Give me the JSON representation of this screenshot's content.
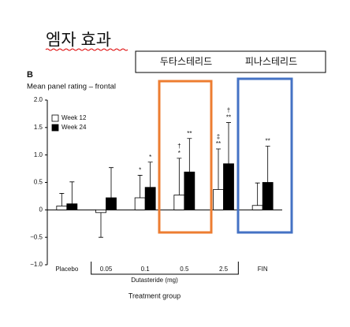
{
  "slide": {
    "title": "엠자 효과",
    "box_labels": [
      "두타스테리드",
      "피나스테리드"
    ],
    "panel": "B"
  },
  "chart_data": {
    "type": "bar",
    "title": "Mean panel rating – frontal",
    "categories": [
      "Placebo",
      "0.05",
      "0.1",
      "0.5",
      "2.5",
      "FIN"
    ],
    "group_label": "Dutasteride (mg)",
    "xlabel": "Treatment group",
    "series": [
      {
        "name": "Week 12",
        "color": "#ffffff",
        "values": [
          0.07,
          -0.05,
          0.22,
          0.27,
          0.37,
          0.08
        ],
        "errors": [
          0.23,
          0.45,
          0.41,
          0.67,
          0.74,
          0.41
        ],
        "markers": [
          null,
          null,
          [
            "*"
          ],
          [
            "†",
            "*"
          ],
          [
            "‡",
            "**"
          ],
          null
        ]
      },
      {
        "name": "Week 24",
        "color": "#000000",
        "values": [
          0.11,
          0.22,
          0.41,
          0.69,
          0.84,
          0.5
        ],
        "errors": [
          0.4,
          0.55,
          0.46,
          0.61,
          0.75,
          0.66
        ],
        "markers": [
          null,
          null,
          [
            "*"
          ],
          [
            "**"
          ],
          [
            "†",
            "**"
          ],
          [
            "**"
          ]
        ]
      }
    ],
    "ylim": [
      -1.0,
      2.0
    ],
    "yticks": [
      {
        "value": -1.0,
        "label": "−1.0"
      },
      {
        "value": -0.5,
        "label": "−0.5"
      },
      {
        "value": 0,
        "label": "0"
      },
      0.5,
      {
        "value": 1.0,
        "label": "1.0"
      },
      1.5,
      {
        "value": 2.0,
        "label": "2.0"
      }
    ],
    "legend": "upper-left"
  }
}
